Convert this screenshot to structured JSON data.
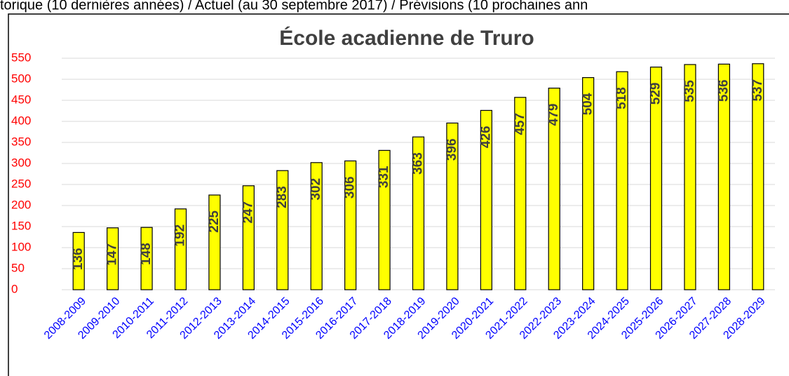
{
  "header": {
    "text": "torique (10 dernières années) / Actuel (au 30 septembre 2017) / Prévisions (10 prochaines ann"
  },
  "chart_data": {
    "type": "bar",
    "title": "École acadienne de Truro",
    "categories": [
      "2008-2009",
      "2009-2010",
      "2010-2011",
      "2011-2012",
      "2012-2013",
      "2013-2014",
      "2014-2015",
      "2015-2016",
      "2016-2017",
      "2017-2018",
      "2018-2019",
      "2019-2020",
      "2020-2021",
      "2021-2022",
      "2022-2023",
      "2023-2024",
      "2024-2025",
      "2025-2026",
      "2026-2027",
      "2027-2028",
      "2028-2029"
    ],
    "values": [
      136,
      147,
      148,
      192,
      225,
      247,
      283,
      302,
      306,
      331,
      363,
      396,
      426,
      457,
      479,
      504,
      518,
      529,
      535,
      536,
      537
    ],
    "color": "#ffff00",
    "ylim": [
      0,
      550
    ],
    "yticks": [
      0,
      50,
      100,
      150,
      200,
      250,
      300,
      350,
      400,
      450,
      500,
      550
    ],
    "grid": true
  }
}
